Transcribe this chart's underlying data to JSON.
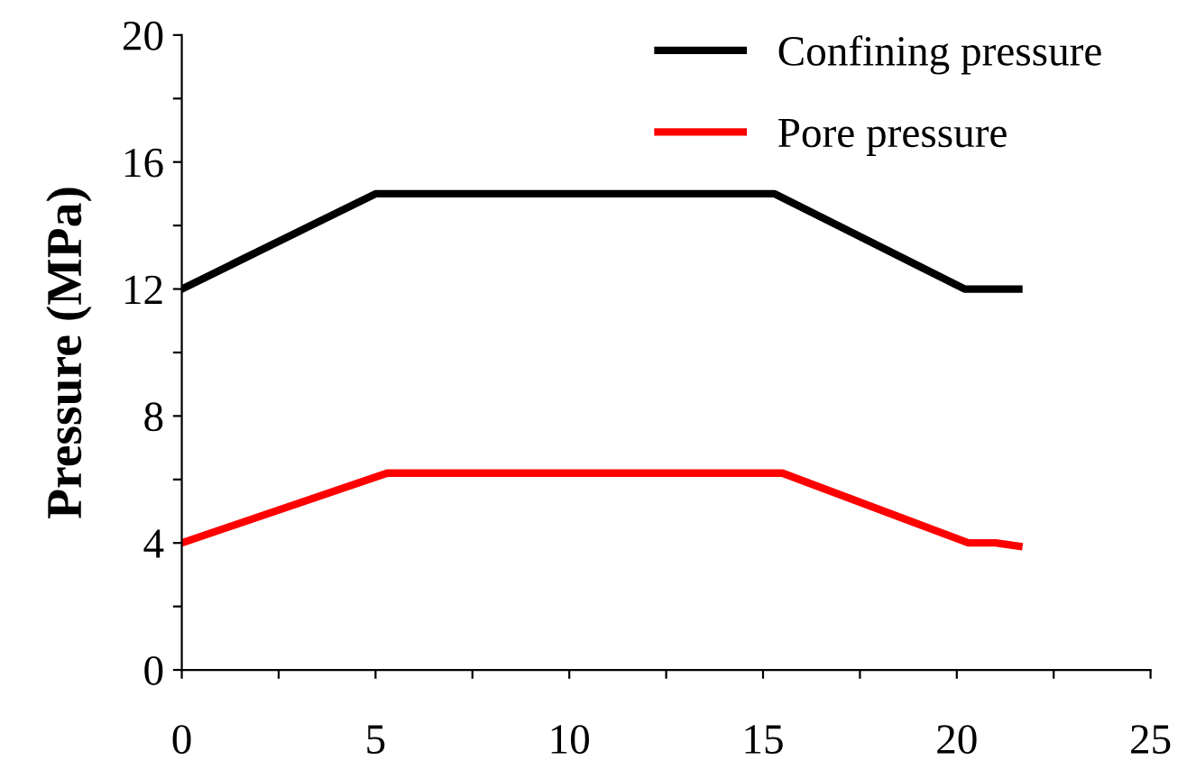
{
  "chart_data": {
    "type": "line",
    "ylabel": "Pressure (MPa)",
    "xlim": [
      0,
      25
    ],
    "ylim": [
      0,
      20
    ],
    "xticks": [
      0,
      {
        "value": 2.5,
        "label": null
      },
      5,
      {
        "value": 7.5,
        "label": null
      },
      10,
      {
        "value": 12.5,
        "label": null
      },
      15,
      {
        "value": 17.5,
        "label": null
      },
      20,
      {
        "value": 22.5,
        "label": null
      },
      25
    ],
    "yticks": [
      0,
      {
        "value": 2,
        "label": null
      },
      4,
      {
        "value": 6,
        "label": null
      },
      8,
      {
        "value": 10,
        "label": null
      },
      12,
      {
        "value": 14,
        "label": null
      },
      16,
      {
        "value": 18,
        "label": null
      },
      20
    ],
    "grid": false,
    "legend": "top right",
    "marker": "none",
    "line_style": "solid",
    "series": [
      {
        "name": "Confining pressure",
        "color": "#000000",
        "x": [
          0,
          5,
          15.3,
          20.2,
          21.6
        ],
        "values": [
          12,
          15,
          15,
          12,
          12
        ]
      },
      {
        "name": "Pore pressure",
        "color": "#ff0000",
        "x": [
          0,
          5.3,
          15.5,
          20.3,
          21,
          21.6
        ],
        "values": [
          4,
          6.2,
          6.2,
          4,
          4,
          3.9
        ]
      }
    ]
  }
}
